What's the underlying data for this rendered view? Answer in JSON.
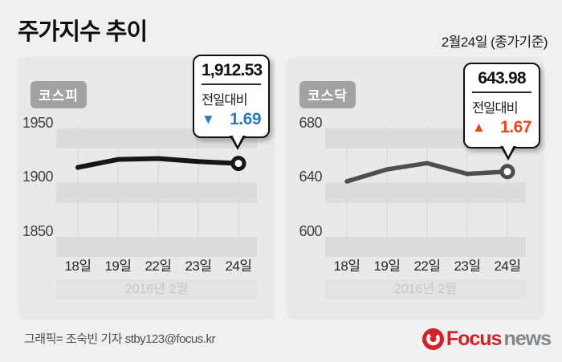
{
  "page": {
    "title": "주가지수 추이",
    "date_note": "2월24일 (종가기준)",
    "footer_credit": "그래픽= 조숙빈 기자 stby123@focus.kr",
    "logo": {
      "brand": "Focus",
      "suffix": "news",
      "icon": "focus-swirl-icon",
      "brand_color": "#d42027",
      "suffix_color": "#81868d"
    }
  },
  "colors": {
    "page_bg": "#f0f0ef",
    "panel_bg": "#e9e9e8",
    "band_dark": "#dcdcdb",
    "vgrid": "#d7d7d6",
    "month_band_bg": "#e3e3e1",
    "badge_bg": "#a2a2a0",
    "down_blue": "#2d7cba",
    "up_red": "#e54718"
  },
  "chart_data": [
    {
      "type": "line",
      "name": "kospi",
      "label": "코스피",
      "categories": [
        "18일",
        "19일",
        "22일",
        "23일",
        "24일"
      ],
      "values": [
        1908.8,
        1916.2,
        1917.0,
        1914.22,
        1912.53
      ],
      "y_ticks": [
        1950,
        1900,
        1850
      ],
      "ylim": [
        1830,
        1960
      ],
      "period_label": "2016년 2월",
      "line_color": "#161616",
      "line_width": 6,
      "grid": "horizontal-bands",
      "legend": "none",
      "callout": {
        "value": "1,912.53",
        "compare_label": "전일대비",
        "direction": "down",
        "arrow": "▼",
        "change": "1.69",
        "change_color": "#2d7cba"
      }
    },
    {
      "type": "line",
      "name": "kosdaq",
      "label": "코스닥",
      "categories": [
        "18일",
        "19일",
        "22일",
        "23일",
        "24일"
      ],
      "values": [
        636.7,
        645.6,
        650.2,
        642.31,
        643.98
      ],
      "y_ticks": [
        680,
        640,
        600
      ],
      "ylim": [
        585,
        690
      ],
      "period_label": "2016년 2월",
      "line_color": "#4e4e4e",
      "line_width": 5.5,
      "grid": "horizontal-bands",
      "legend": "none",
      "callout": {
        "value": "643.98",
        "compare_label": "전일대비",
        "direction": "up",
        "arrow": "▲",
        "change": "1.67",
        "change_color": "#e54718"
      }
    }
  ]
}
